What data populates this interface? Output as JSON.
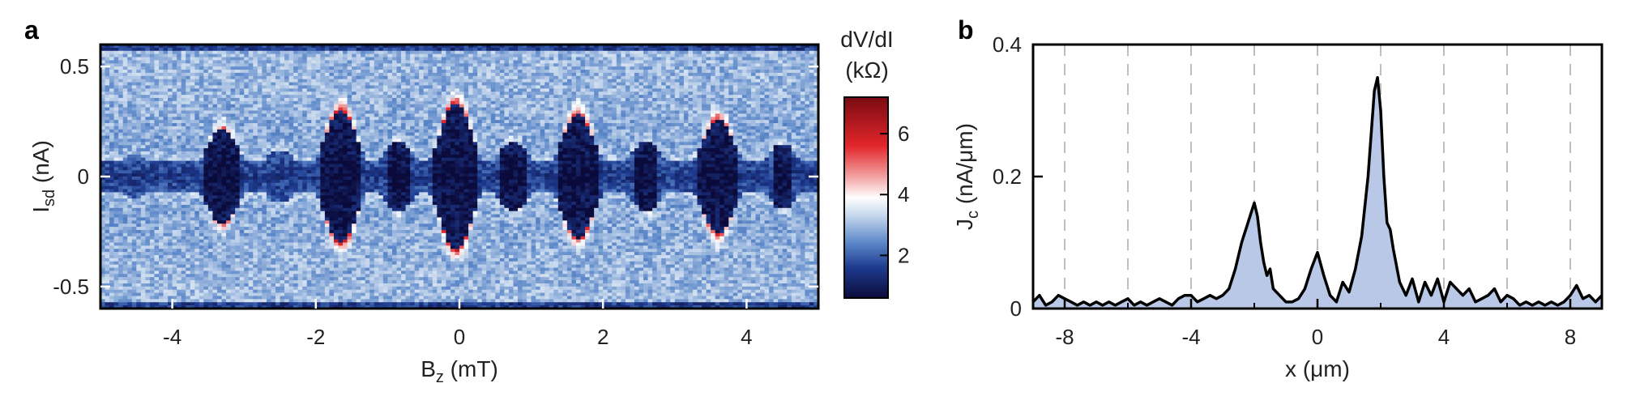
{
  "chart_data": [
    {
      "panel": "a",
      "type": "heatmap",
      "xlabel_main": "B",
      "xlabel_sub": "z",
      "xlabel_unit": " (mT)",
      "ylabel_main": "I",
      "ylabel_sub": "sd",
      "ylabel_unit": " (nA)",
      "xlim": [
        -5,
        5
      ],
      "ylim": [
        -0.6,
        0.6
      ],
      "xticks": [
        -4,
        -2,
        0,
        2,
        4
      ],
      "xtick_labels": [
        "-4",
        "-2",
        "0",
        "2",
        "4"
      ],
      "yticks": [
        -0.5,
        0,
        0.5
      ],
      "ytick_labels": [
        "-0.5",
        "0",
        "0.5"
      ],
      "colorbar": {
        "title_line1": "dV/dI",
        "title_line2": "(kΩ)",
        "range": [
          0.6,
          7.2
        ],
        "ticks": [
          2,
          4,
          6
        ],
        "tick_labels": [
          "2",
          "4",
          "6"
        ],
        "colors": [
          "#0b0b3b",
          "#1e3b8f",
          "#5a86c8",
          "#c4d6ec",
          "#ffffff",
          "#f2a0a0",
          "#e2262b",
          "#7a0a12"
        ]
      },
      "background_value": 3.0,
      "supercurrent_base_halfwidth": 0.07,
      "lobes": [
        {
          "B": -4.55,
          "Ic": 0.1
        },
        {
          "B": -3.3,
          "Ic": 0.22
        },
        {
          "B": -2.5,
          "Ic": 0.12
        },
        {
          "B": -1.65,
          "Ic": 0.3
        },
        {
          "B": -0.85,
          "Ic": 0.16
        },
        {
          "B": -0.05,
          "Ic": 0.33
        },
        {
          "B": 0.75,
          "Ic": 0.16
        },
        {
          "B": 1.65,
          "Ic": 0.28
        },
        {
          "B": 2.6,
          "Ic": 0.16
        },
        {
          "B": 3.6,
          "Ic": 0.26
        },
        {
          "B": 4.5,
          "Ic": 0.15
        }
      ]
    },
    {
      "panel": "b",
      "type": "area",
      "xlabel": "x (μm)",
      "ylabel_main": "J",
      "ylabel_sub": "c",
      "ylabel_unit": " (nA/μm)",
      "xlim": [
        -9,
        9
      ],
      "ylim": [
        0,
        0.4
      ],
      "xticks": [
        -8,
        -4,
        0,
        4,
        8
      ],
      "xtick_labels": [
        "-8",
        "-4",
        "0",
        "4",
        "8"
      ],
      "minor_xticks": [
        -6,
        -2,
        2,
        6
      ],
      "yticks": [
        0,
        0.2,
        0.4
      ],
      "ytick_labels": [
        "0",
        "0.2",
        "0.4"
      ],
      "vertical_dashed_lines": [
        -8,
        -6,
        -4,
        -2,
        0,
        2,
        4,
        6,
        8
      ],
      "fill_color": "#b9c8e6",
      "line_color": "#000000",
      "x": [
        -9,
        -8.8,
        -8.6,
        -8.4,
        -8.2,
        -8,
        -7.8,
        -7.6,
        -7.4,
        -7.2,
        -7,
        -6.8,
        -6.6,
        -6.4,
        -6.2,
        -6,
        -5.8,
        -5.6,
        -5.4,
        -5.2,
        -5,
        -4.8,
        -4.6,
        -4.4,
        -4.2,
        -4,
        -3.8,
        -3.6,
        -3.4,
        -3.2,
        -3,
        -2.8,
        -2.6,
        -2.4,
        -2.2,
        -2,
        -1.9,
        -1.8,
        -1.7,
        -1.6,
        -1.5,
        -1.4,
        -1.2,
        -1,
        -0.8,
        -0.6,
        -0.4,
        -0.2,
        0,
        0.2,
        0.4,
        0.6,
        0.8,
        1,
        1.2,
        1.4,
        1.6,
        1.8,
        1.9,
        2,
        2.1,
        2.2,
        2.3,
        2.4,
        2.6,
        2.8,
        3,
        3.2,
        3.4,
        3.6,
        3.8,
        4,
        4.2,
        4.4,
        4.6,
        4.8,
        5,
        5.2,
        5.4,
        5.6,
        5.8,
        6,
        6.2,
        6.4,
        6.6,
        6.8,
        7,
        7.2,
        7.4,
        7.6,
        7.8,
        8,
        8.2,
        8.4,
        8.6,
        8.8,
        9
      ],
      "y": [
        0.01,
        0.02,
        0.005,
        0.01,
        0.02,
        0.015,
        0.01,
        0.005,
        0.01,
        0.005,
        0.01,
        0.005,
        0.01,
        0.005,
        0.01,
        0.015,
        0.005,
        0.01,
        0.005,
        0.01,
        0.015,
        0.01,
        0.005,
        0.015,
        0.02,
        0.02,
        0.01,
        0.015,
        0.02,
        0.015,
        0.02,
        0.03,
        0.06,
        0.1,
        0.13,
        0.16,
        0.14,
        0.1,
        0.07,
        0.05,
        0.06,
        0.03,
        0.02,
        0.01,
        0.01,
        0.015,
        0.03,
        0.06,
        0.085,
        0.05,
        0.02,
        0.01,
        0.04,
        0.025,
        0.06,
        0.11,
        0.2,
        0.33,
        0.35,
        0.3,
        0.2,
        0.13,
        0.12,
        0.09,
        0.04,
        0.02,
        0.045,
        0.01,
        0.04,
        0.02,
        0.045,
        0.01,
        0.04,
        0.03,
        0.02,
        0.03,
        0.01,
        0.015,
        0.02,
        0.03,
        0.01,
        0.02,
        0.015,
        0.005,
        0.01,
        0.005,
        0.01,
        0.005,
        0.01,
        0.005,
        0.01,
        0.02,
        0.035,
        0.015,
        0.02,
        0.01,
        0.02
      ]
    }
  ]
}
